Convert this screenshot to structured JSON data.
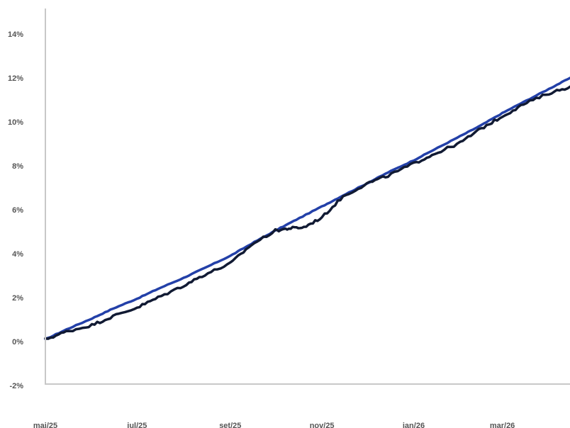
{
  "chart_data": {
    "type": "line",
    "title": "",
    "xlabel": "",
    "ylabel": "",
    "x_range": [
      "2025-05-01",
      "2026-04-15"
    ],
    "ylim": [
      -2,
      14
    ],
    "y_ticks": [
      {
        "value": -2,
        "label": "-2%"
      },
      {
        "value": 0,
        "label": "0%"
      },
      {
        "value": 2,
        "label": "2%"
      },
      {
        "value": 4,
        "label": "4%"
      },
      {
        "value": 6,
        "label": "6%"
      },
      {
        "value": 8,
        "label": "8%"
      },
      {
        "value": 10,
        "label": "10%"
      },
      {
        "value": 12,
        "label": "12%"
      },
      {
        "value": 14,
        "label": "14%"
      }
    ],
    "x_ticks": [
      {
        "date": "2025-05-01",
        "label": "mai/25"
      },
      {
        "date": "2025-07-01",
        "label": "jul/25"
      },
      {
        "date": "2025-09-01",
        "label": "set/25"
      },
      {
        "date": "2025-11-01",
        "label": "nov/25"
      },
      {
        "date": "2026-01-01",
        "label": "jan/26"
      },
      {
        "date": "2026-03-01",
        "label": "mar/26"
      }
    ],
    "grid": false,
    "legend": "none",
    "series": [
      {
        "color": "#2340a8",
        "points": [
          [
            "2025-05-01",
            0.1
          ],
          [
            "2025-05-15",
            0.55
          ],
          [
            "2025-06-01",
            1.05
          ],
          [
            "2025-06-15",
            1.5
          ],
          [
            "2025-07-01",
            1.95
          ],
          [
            "2025-07-15",
            2.4
          ],
          [
            "2025-08-01",
            2.9
          ],
          [
            "2025-08-15",
            3.35
          ],
          [
            "2025-09-01",
            3.9
          ],
          [
            "2025-09-15",
            4.45
          ],
          [
            "2025-10-01",
            5.05
          ],
          [
            "2025-10-15",
            5.55
          ],
          [
            "2025-11-01",
            6.15
          ],
          [
            "2025-11-15",
            6.65
          ],
          [
            "2025-12-01",
            7.2
          ],
          [
            "2025-12-15",
            7.7
          ],
          [
            "2026-01-01",
            8.25
          ],
          [
            "2026-01-15",
            8.75
          ],
          [
            "2026-02-01",
            9.35
          ],
          [
            "2026-02-15",
            9.85
          ],
          [
            "2026-03-01",
            10.4
          ],
          [
            "2026-03-15",
            10.9
          ],
          [
            "2026-04-01",
            11.5
          ],
          [
            "2026-04-15",
            12.0
          ]
        ]
      },
      {
        "color": "#111a33",
        "points": [
          [
            "2025-05-01",
            0.1
          ],
          [
            "2025-05-15",
            0.45
          ],
          [
            "2025-06-01",
            0.75
          ],
          [
            "2025-06-15",
            1.15
          ],
          [
            "2025-07-01",
            1.55
          ],
          [
            "2025-07-15",
            2.0
          ],
          [
            "2025-08-01",
            2.55
          ],
          [
            "2025-08-15",
            3.05
          ],
          [
            "2025-09-01",
            3.55
          ],
          [
            "2025-09-15",
            4.4
          ],
          [
            "2025-10-01",
            5.05
          ],
          [
            "2025-10-10",
            5.15
          ],
          [
            "2025-10-20",
            5.2
          ],
          [
            "2025-11-01",
            5.65
          ],
          [
            "2025-11-15",
            6.6
          ],
          [
            "2025-12-01",
            7.2
          ],
          [
            "2025-12-15",
            7.55
          ],
          [
            "2026-01-01",
            8.1
          ],
          [
            "2026-01-15",
            8.55
          ],
          [
            "2026-02-01",
            9.05
          ],
          [
            "2026-02-15",
            9.7
          ],
          [
            "2026-03-01",
            10.25
          ],
          [
            "2026-03-15",
            10.8
          ],
          [
            "2026-04-01",
            11.3
          ],
          [
            "2026-04-15",
            11.6
          ]
        ]
      }
    ]
  }
}
